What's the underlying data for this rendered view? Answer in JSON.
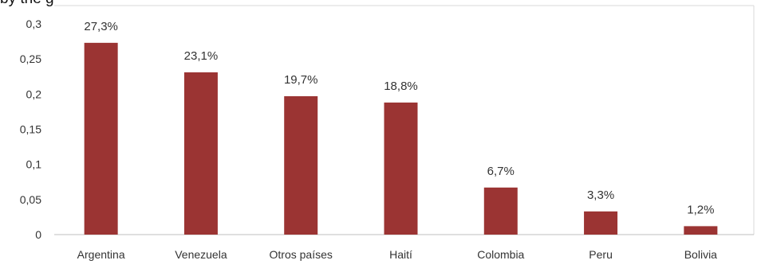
{
  "chart_data": {
    "type": "bar",
    "title_fragment": "by the g",
    "categories": [
      "Argentina",
      "Venezuela",
      "Otros países",
      "Haití",
      "Colombia",
      "Peru",
      "Bolivia"
    ],
    "values": [
      0.273,
      0.231,
      0.197,
      0.188,
      0.067,
      0.033,
      0.012
    ],
    "data_labels": [
      "27,3%",
      "23,1%",
      "19,7%",
      "18,8%",
      "6,7%",
      "3,3%",
      "1,2%"
    ],
    "y_ticks": [
      {
        "value": 0,
        "label": "0"
      },
      {
        "value": 0.05,
        "label": "0,05"
      },
      {
        "value": 0.1,
        "label": "0,1"
      },
      {
        "value": 0.15,
        "label": "0,15"
      },
      {
        "value": 0.2,
        "label": "0,2"
      },
      {
        "value": 0.25,
        "label": "0,25"
      },
      {
        "value": 0.3,
        "label": "0,3"
      }
    ],
    "ylim": [
      0,
      0.3
    ],
    "grid": false,
    "legend": "none",
    "bar_color": "#9b3433",
    "axis_color": "#bfbfbf",
    "text_color": "#333333"
  }
}
